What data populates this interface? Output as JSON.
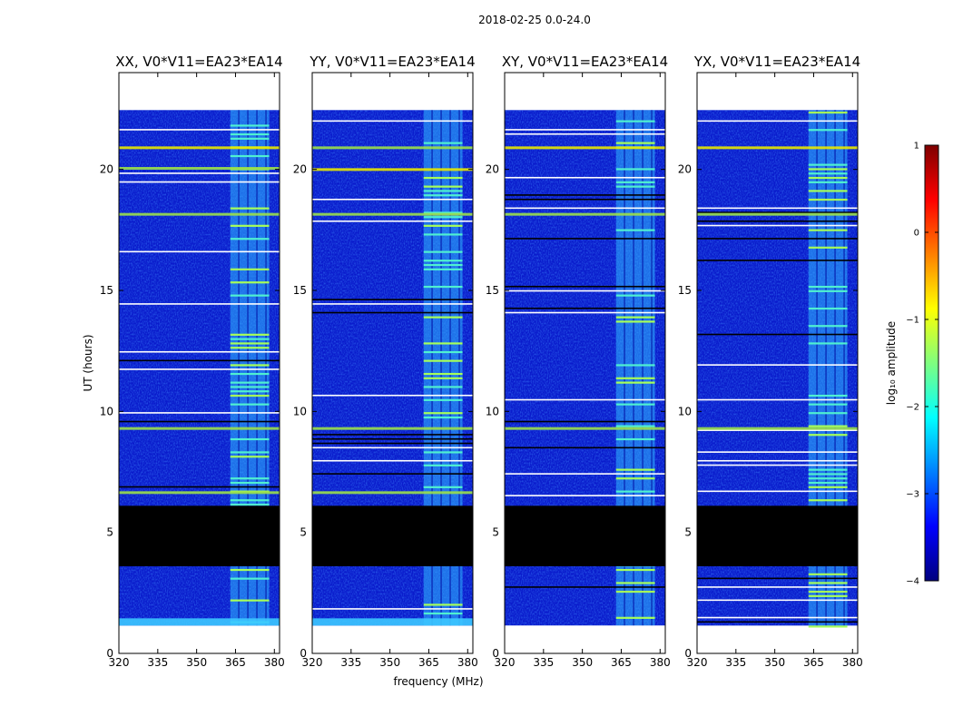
{
  "figure_title": "2018-02-25 0.0-24.0",
  "chart_data": {
    "type": "heatmap",
    "suptitle": "2018-02-25 0.0-24.0",
    "xlabel": "frequency (MHz)",
    "ylabel": "UT (hours)",
    "xlim": [
      320,
      382
    ],
    "ylim": [
      0,
      24
    ],
    "xticks": [
      320,
      335,
      350,
      365,
      380
    ],
    "yticks": [
      0,
      5,
      10,
      15,
      20
    ],
    "data_extent_hours": [
      1.15,
      22.45
    ],
    "rfi_band_mhz": [
      363,
      378
    ],
    "no_data_blocks_hours": [
      [
        3.6,
        6.1
      ]
    ],
    "panels": [
      {
        "title": "XX, V0*V11=EA23*EA14",
        "product": "XX",
        "bright_rows_hours": [
          20.95,
          20.1,
          18.2,
          9.35,
          6.7
        ],
        "low_edge_strip": true
      },
      {
        "title": "YY, V0*V11=EA23*EA14",
        "product": "YY",
        "bright_rows_hours": [
          20.05,
          20.95,
          18.2,
          9.35,
          6.7
        ],
        "low_edge_strip": true
      },
      {
        "title": "XY, V0*V11=EA23*EA14",
        "product": "XY",
        "bright_rows_hours": [
          20.95,
          18.2,
          9.35
        ],
        "low_edge_strip": false
      },
      {
        "title": "YX, V0*V11=EA23*EA14",
        "product": "YX",
        "bright_rows_hours": [
          20.95,
          18.2,
          9.35
        ],
        "low_edge_strip": false
      }
    ],
    "colorbar": {
      "label": "log₁₀ amplitude",
      "colormap": "jet",
      "range": [
        -4,
        1
      ],
      "ticks": [
        "1",
        "0",
        "−1",
        "−2",
        "−3",
        "−4"
      ]
    },
    "colors": {
      "nodata": "#000000",
      "jet_stops": [
        "#00007f",
        "#0000ff",
        "#007fff",
        "#00ffff",
        "#7fff7f",
        "#ffff00",
        "#ff7f00",
        "#ff0000",
        "#7f0000"
      ]
    }
  }
}
